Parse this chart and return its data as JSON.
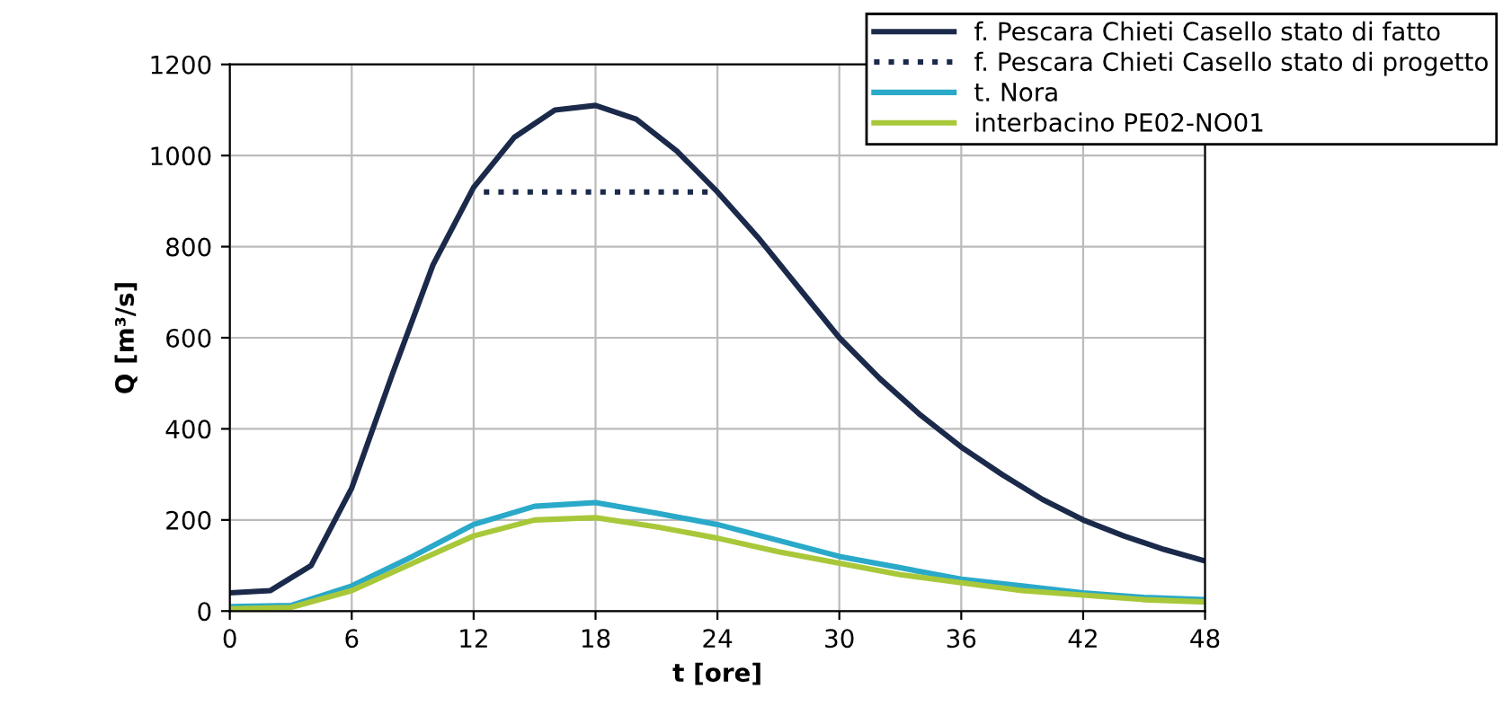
{
  "chart_data": {
    "type": "line",
    "xlabel": "t [ore]",
    "ylabel": "Q [m³/s]",
    "xlim": [
      0,
      48
    ],
    "ylim": [
      0,
      1200
    ],
    "xticks": [
      0,
      6,
      12,
      18,
      24,
      30,
      36,
      42,
      48
    ],
    "yticks": [
      0,
      200,
      400,
      600,
      800,
      1000,
      1200
    ],
    "grid": true,
    "legend": "top right",
    "series": [
      {
        "name": "f. Pescara Chieti Casello stato di fatto",
        "color": "#1b2a4a",
        "line_style": "solid",
        "x": [
          0,
          2,
          4,
          6,
          8,
          10,
          12,
          14,
          16,
          18,
          20,
          22,
          24,
          26,
          28,
          30,
          32,
          34,
          36,
          38,
          40,
          42,
          44,
          46,
          48
        ],
        "values": [
          40,
          45,
          100,
          270,
          520,
          760,
          930,
          1040,
          1100,
          1110,
          1080,
          1010,
          920,
          820,
          710,
          600,
          510,
          430,
          360,
          300,
          245,
          200,
          165,
          135,
          110
        ]
      },
      {
        "name": "f. Pescara Chieti Casello stato di progetto",
        "color": "#1b2a4a",
        "line_style": "dotted",
        "x": [
          12.5,
          24
        ],
        "values": [
          920,
          920
        ]
      },
      {
        "name": "t. Nora",
        "color": "#2aa9c9",
        "line_style": "solid",
        "x": [
          0,
          3,
          6,
          9,
          12,
          15,
          18,
          21,
          24,
          27,
          30,
          33,
          36,
          39,
          42,
          45,
          48
        ],
        "values": [
          10,
          12,
          55,
          120,
          190,
          230,
          238,
          215,
          190,
          155,
          120,
          95,
          70,
          55,
          40,
          30,
          25
        ]
      },
      {
        "name": "interbacino PE02-NO01",
        "color": "#a8c83a",
        "line_style": "solid",
        "x": [
          0,
          3,
          6,
          9,
          12,
          15,
          18,
          21,
          24,
          27,
          30,
          33,
          36,
          39,
          42,
          45,
          48
        ],
        "values": [
          5,
          8,
          45,
          105,
          165,
          200,
          205,
          185,
          160,
          130,
          105,
          80,
          62,
          45,
          35,
          25,
          20
        ]
      }
    ]
  }
}
